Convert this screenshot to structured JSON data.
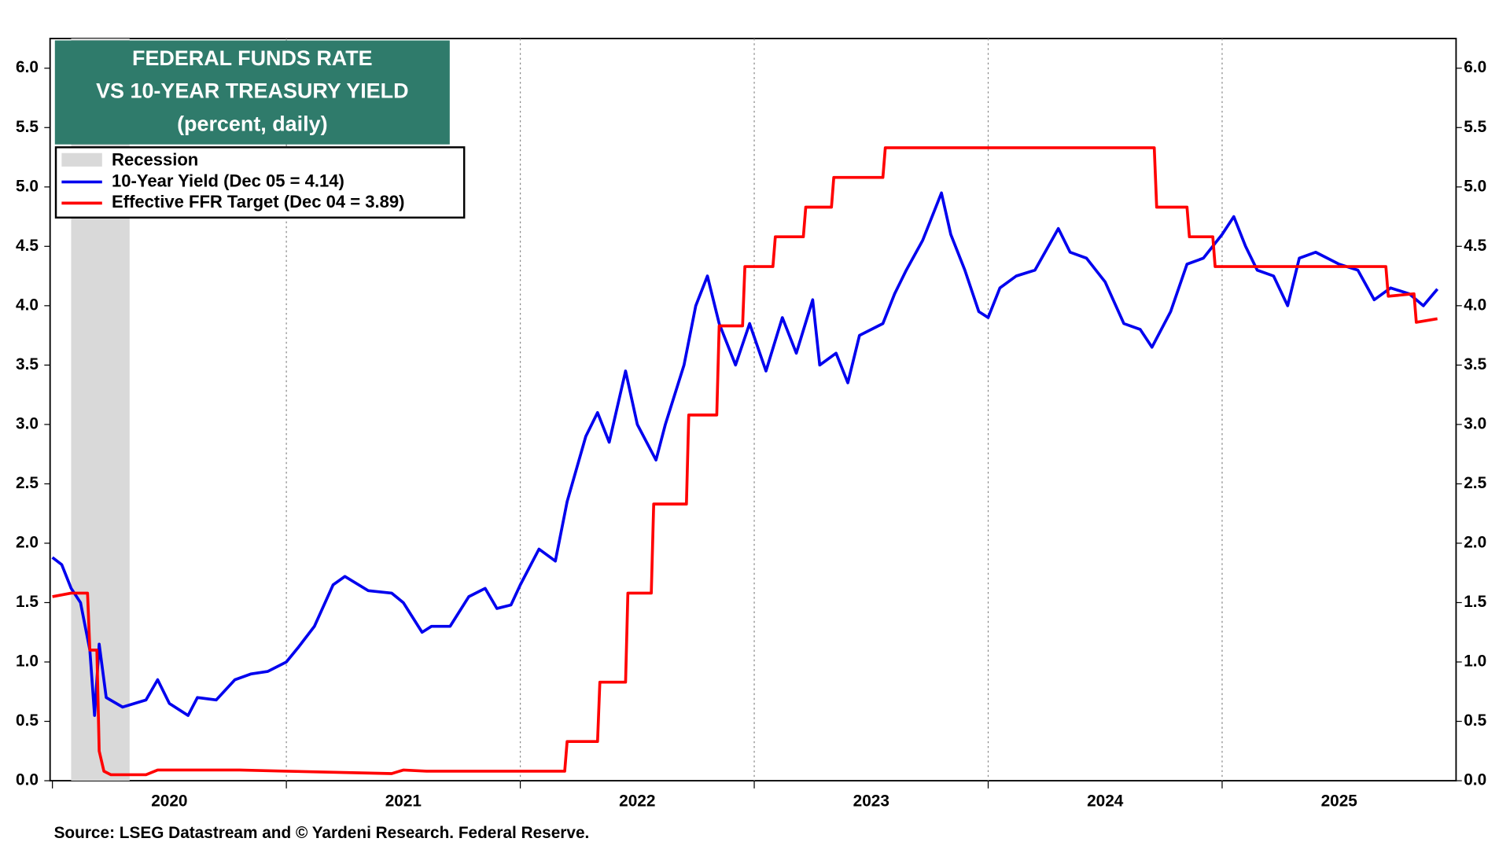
{
  "chart_data": {
    "type": "line",
    "title": [
      "FEDERAL FUNDS RATE",
      "VS 10-YEAR TREASURY YIELD"
    ],
    "subtitle": "(percent, daily)",
    "source": "Source: LSEG Datastream and © Yardeni Research. Federal Reserve.",
    "legend": "upper left",
    "grid": true,
    "recession": {
      "name": "Recession",
      "color": "#d9d9d9",
      "x": [
        2020.08,
        2020.33
      ]
    },
    "xlim": [
      2019.99,
      2026.0
    ],
    "xticks": [
      {
        "value": 2020,
        "label": "2020"
      },
      {
        "value": 2021,
        "label": "2021"
      },
      {
        "value": 2022,
        "label": "2022"
      },
      {
        "value": 2023,
        "label": "2023"
      },
      {
        "value": 2024,
        "label": "2024"
      },
      {
        "value": 2025,
        "label": "2025"
      }
    ],
    "ylim": [
      0,
      6.25
    ],
    "yticks": [
      {
        "value": 0,
        "label": "0.0"
      },
      0.5,
      {
        "value": 1,
        "label": "1.0"
      },
      1.5,
      {
        "value": 2,
        "label": "2.0"
      },
      2.5,
      {
        "value": 3,
        "label": "3.0"
      },
      3.5,
      {
        "value": 4,
        "label": "4.0"
      },
      4.5,
      {
        "value": 5,
        "label": "5.0"
      },
      5.5,
      {
        "value": 6,
        "label": "6.0"
      }
    ],
    "series": [
      {
        "name": "10-Year Yield (Dec 05 = 4.14)",
        "color": "#0000ee",
        "x": [
          2020.0,
          2020.04,
          2020.08,
          2020.12,
          2020.16,
          2020.18,
          2020.2,
          2020.23,
          2020.3,
          2020.4,
          2020.45,
          2020.5,
          2020.58,
          2020.62,
          2020.7,
          2020.78,
          2020.85,
          2020.92,
          2021.0,
          2021.05,
          2021.12,
          2021.2,
          2021.25,
          2021.35,
          2021.45,
          2021.5,
          2021.58,
          2021.62,
          2021.7,
          2021.78,
          2021.85,
          2021.9,
          2021.96,
          2022.0,
          2022.08,
          2022.15,
          2022.2,
          2022.28,
          2022.33,
          2022.38,
          2022.45,
          2022.5,
          2022.58,
          2022.62,
          2022.7,
          2022.75,
          2022.8,
          2022.85,
          2022.92,
          2022.98,
          2023.05,
          2023.12,
          2023.18,
          2023.25,
          2023.28,
          2023.35,
          2023.4,
          2023.45,
          2023.55,
          2023.6,
          2023.65,
          2023.72,
          2023.8,
          2023.84,
          2023.9,
          2023.96,
          2024.0,
          2024.05,
          2024.12,
          2024.2,
          2024.3,
          2024.35,
          2024.42,
          2024.5,
          2024.58,
          2024.65,
          2024.7,
          2024.78,
          2024.85,
          2024.92,
          2025.0,
          2025.05,
          2025.1,
          2025.15,
          2025.22,
          2025.28,
          2025.33,
          2025.4,
          2025.5,
          2025.58,
          2025.65,
          2025.72,
          2025.8,
          2025.86,
          2025.92
        ],
        "values": [
          1.88,
          1.82,
          1.62,
          1.5,
          1.1,
          0.55,
          1.15,
          0.7,
          0.62,
          0.68,
          0.85,
          0.65,
          0.55,
          0.7,
          0.68,
          0.85,
          0.9,
          0.92,
          1.0,
          1.12,
          1.3,
          1.65,
          1.72,
          1.6,
          1.58,
          1.5,
          1.25,
          1.3,
          1.3,
          1.55,
          1.62,
          1.45,
          1.48,
          1.65,
          1.95,
          1.85,
          2.35,
          2.9,
          3.1,
          2.85,
          3.45,
          3.0,
          2.7,
          3.0,
          3.5,
          4.0,
          4.25,
          3.85,
          3.5,
          3.85,
          3.45,
          3.9,
          3.6,
          4.05,
          3.5,
          3.6,
          3.35,
          3.75,
          3.85,
          4.1,
          4.3,
          4.55,
          4.95,
          4.6,
          4.3,
          3.95,
          3.9,
          4.15,
          4.25,
          4.3,
          4.65,
          4.45,
          4.4,
          4.2,
          3.85,
          3.8,
          3.65,
          3.95,
          4.35,
          4.4,
          4.6,
          4.75,
          4.5,
          4.3,
          4.25,
          4.0,
          4.4,
          4.45,
          4.35,
          4.3,
          4.05,
          4.15,
          4.1,
          4.0,
          4.14
        ]
      },
      {
        "name": "Effective FFR Target (Dec 04 = 3.89)",
        "color": "#ff0000",
        "x": [
          2020.0,
          2020.08,
          2020.15,
          2020.16,
          2020.19,
          2020.2,
          2020.22,
          2020.25,
          2020.4,
          2020.45,
          2020.8,
          2021.0,
          2021.45,
          2021.5,
          2021.6,
          2022.19,
          2022.2,
          2022.33,
          2022.34,
          2022.45,
          2022.46,
          2022.56,
          2022.57,
          2022.71,
          2022.72,
          2022.84,
          2022.85,
          2022.95,
          2022.96,
          2023.08,
          2023.09,
          2023.21,
          2023.22,
          2023.33,
          2023.34,
          2023.55,
          2023.56,
          2024.71,
          2024.72,
          2024.85,
          2024.86,
          2024.96,
          2024.97,
          2025.7,
          2025.71,
          2025.82,
          2025.83,
          2025.92
        ],
        "values": [
          1.55,
          1.58,
          1.58,
          1.1,
          1.1,
          0.25,
          0.08,
          0.05,
          0.05,
          0.09,
          0.09,
          0.08,
          0.06,
          0.09,
          0.08,
          0.08,
          0.33,
          0.33,
          0.83,
          0.83,
          1.58,
          1.58,
          2.33,
          2.33,
          3.08,
          3.08,
          3.83,
          3.83,
          4.33,
          4.33,
          4.58,
          4.58,
          4.83,
          4.83,
          5.08,
          5.08,
          5.33,
          5.33,
          4.83,
          4.83,
          4.58,
          4.58,
          4.33,
          4.33,
          4.08,
          4.1,
          3.86,
          3.89
        ]
      }
    ]
  }
}
